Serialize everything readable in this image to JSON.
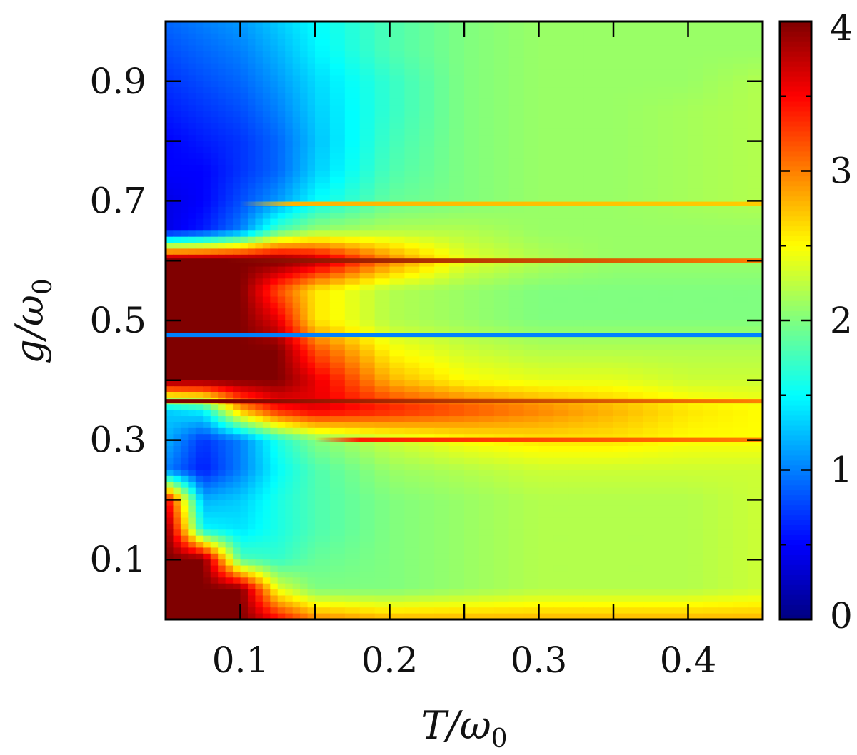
{
  "chart_data": {
    "type": "heatmap",
    "title": "",
    "xlabel": {
      "main": "T/ω",
      "sub": "0"
    },
    "ylabel": {
      "main": "g/ω",
      "sub": "0"
    },
    "xlim": [
      0.05,
      0.45
    ],
    "ylim": [
      0.0,
      1.0
    ],
    "x_ticks": [
      "0.1",
      "0.2",
      "0.3",
      "0.4"
    ],
    "x_tick_values": [
      0.1,
      0.2,
      0.3,
      0.4
    ],
    "y_ticks": [
      "0.1",
      "0.3",
      "0.5",
      "0.7",
      "0.9"
    ],
    "y_tick_values": [
      0.1,
      0.3,
      0.5,
      0.7,
      0.9
    ],
    "colorbar": {
      "range": [
        0,
        4
      ],
      "ticks": [
        "0",
        "1",
        "2",
        "3",
        "4"
      ],
      "tick_values": [
        0,
        1,
        2,
        3,
        4
      ],
      "colormap": "jet"
    },
    "x": [
      0.05,
      0.075,
      0.1,
      0.125,
      0.15,
      0.2,
      0.25,
      0.3,
      0.35,
      0.4,
      0.45
    ],
    "y": [
      1.0,
      0.95,
      0.9,
      0.85,
      0.8,
      0.75,
      0.7,
      0.65,
      0.6,
      0.55,
      0.5,
      0.45,
      0.4,
      0.35,
      0.3,
      0.25,
      0.2,
      0.15,
      0.1,
      0.05,
      0.0
    ],
    "z": [
      [
        0.9,
        1.0,
        1.1,
        1.3,
        1.5,
        1.8,
        2.0,
        2.1,
        2.1,
        2.1,
        2.1
      ],
      [
        0.8,
        0.9,
        1.0,
        1.2,
        1.45,
        1.8,
        2.0,
        2.1,
        2.1,
        2.1,
        2.1
      ],
      [
        0.7,
        0.8,
        0.9,
        1.1,
        1.35,
        1.7,
        2.0,
        2.1,
        2.1,
        2.1,
        2.2
      ],
      [
        0.6,
        0.7,
        0.8,
        1.0,
        1.3,
        1.7,
        2.0,
        2.1,
        2.1,
        2.15,
        2.2
      ],
      [
        0.5,
        0.6,
        0.7,
        0.9,
        1.25,
        1.75,
        2.0,
        2.1,
        2.1,
        2.15,
        2.2
      ],
      [
        0.5,
        0.5,
        0.7,
        0.9,
        1.3,
        1.8,
        2.0,
        2.1,
        2.1,
        2.15,
        2.2
      ],
      [
        0.4,
        0.5,
        0.8,
        1.1,
        1.5,
        1.9,
        2.0,
        2.1,
        2.1,
        2.15,
        2.2
      ],
      [
        0.4,
        0.6,
        1.0,
        1.8,
        2.1,
        2.2,
        2.2,
        2.1,
        2.1,
        2.1,
        2.1
      ],
      [
        4.0,
        4.0,
        4.0,
        4.0,
        3.8,
        3.0,
        2.4,
        2.2,
        2.1,
        2.1,
        2.1
      ],
      [
        4.0,
        4.0,
        4.0,
        3.2,
        2.6,
        2.2,
        2.1,
        2.0,
        2.0,
        2.0,
        2.0
      ],
      [
        4.0,
        4.0,
        4.0,
        3.6,
        2.6,
        2.2,
        2.1,
        2.0,
        2.0,
        2.0,
        2.0
      ],
      [
        4.0,
        4.0,
        4.0,
        4.0,
        3.2,
        2.5,
        2.3,
        2.2,
        2.2,
        2.2,
        2.2
      ],
      [
        4.0,
        4.0,
        4.0,
        4.0,
        3.6,
        2.8,
        2.5,
        2.4,
        2.4,
        2.3,
        2.3
      ],
      [
        1.3,
        1.5,
        2.8,
        3.4,
        3.6,
        3.4,
        3.2,
        3.0,
        2.8,
        2.6,
        2.5
      ],
      [
        1.2,
        0.7,
        1.0,
        1.6,
        2.0,
        2.3,
        2.5,
        2.6,
        2.6,
        2.5,
        2.5
      ],
      [
        1.0,
        0.6,
        1.0,
        1.5,
        1.8,
        2.1,
        2.2,
        2.3,
        2.3,
        2.3,
        2.3
      ],
      [
        3.6,
        1.2,
        1.3,
        1.6,
        1.8,
        2.0,
        2.1,
        2.2,
        2.2,
        2.2,
        2.3
      ],
      [
        4.0,
        1.5,
        1.4,
        1.6,
        1.8,
        2.0,
        2.1,
        2.2,
        2.2,
        2.2,
        2.3
      ],
      [
        4.0,
        4.0,
        1.8,
        1.7,
        1.9,
        2.0,
        2.1,
        2.2,
        2.2,
        2.2,
        2.3
      ],
      [
        4.0,
        4.0,
        4.0,
        2.4,
        2.0,
        2.0,
        2.1,
        2.2,
        2.2,
        2.2,
        2.3
      ],
      [
        4.0,
        4.0,
        4.0,
        3.5,
        3.0,
        2.8,
        2.8,
        2.8,
        2.8,
        2.8,
        2.8
      ]
    ],
    "horizontal_features": [
      {
        "g": 0.695,
        "x_from": 0.1,
        "value_start": 2.8,
        "value_end": 2.7
      },
      {
        "g": 0.6,
        "x_from": 0.05,
        "value_start": 4.0,
        "value_end": 3.0
      },
      {
        "g": 0.476,
        "x_from": 0.05,
        "value_start": 1.0,
        "value_end": 1.0
      },
      {
        "g": 0.365,
        "x_from": 0.05,
        "value_start": 4.0,
        "value_end": 3.0
      },
      {
        "g": 0.3,
        "x_from": 0.15,
        "value_start": 3.4,
        "value_end": 3.0
      }
    ],
    "grid": false
  }
}
